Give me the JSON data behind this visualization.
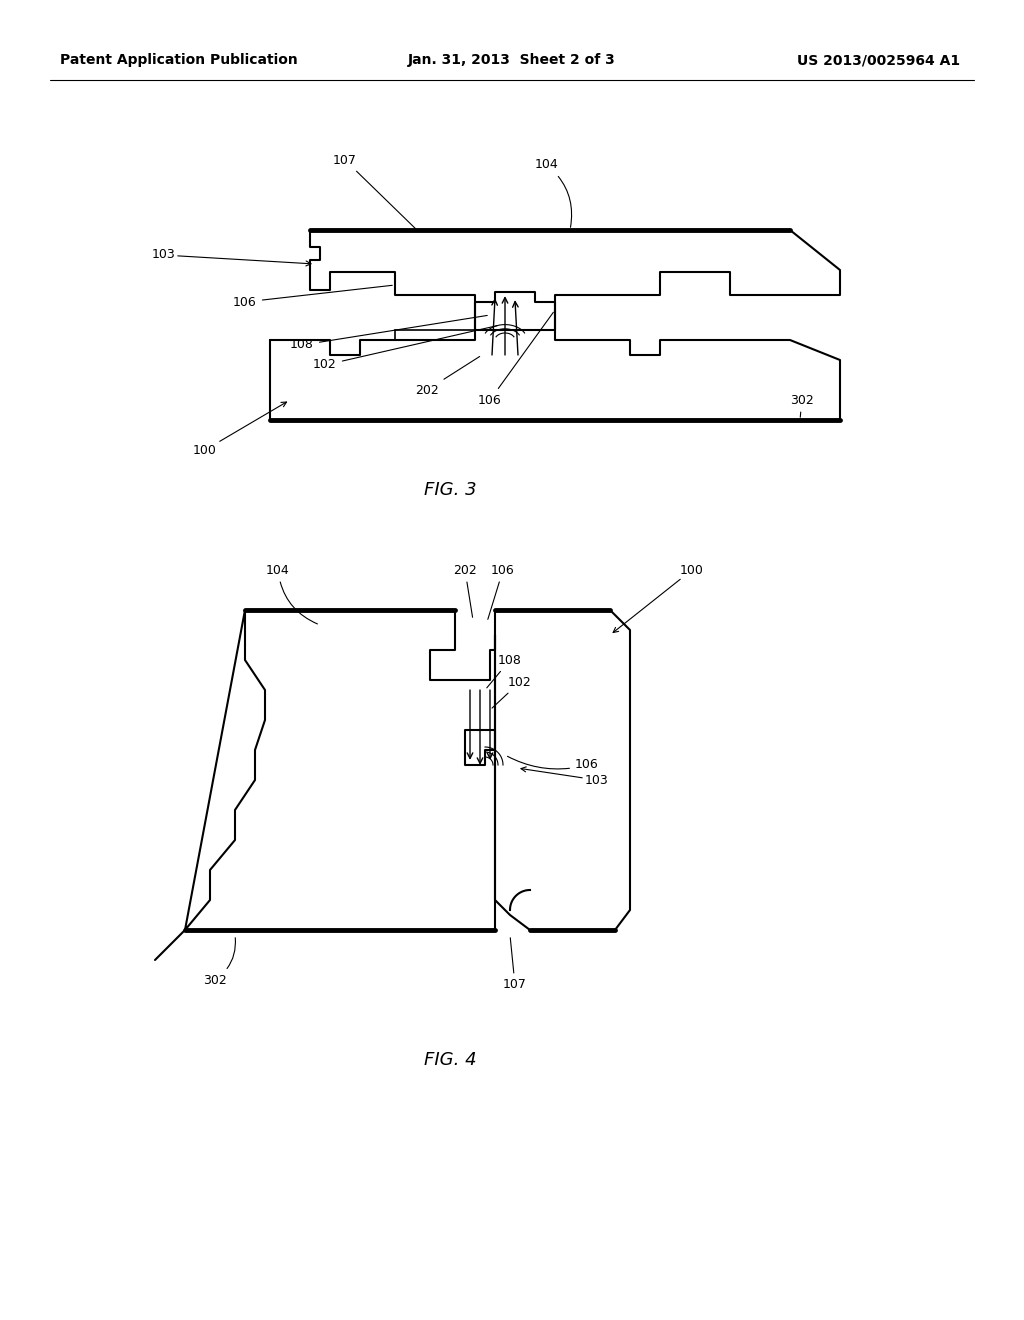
{
  "background_color": "#ffffff",
  "line_color": "#000000",
  "line_width": 1.5,
  "header_left": "Patent Application Publication",
  "header_center": "Jan. 31, 2013  Sheet 2 of 3",
  "header_right": "US 2013/0025964 A1",
  "fig3_label": "FIG. 3",
  "fig4_label": "FIG. 4",
  "header_fontsize": 10,
  "label_fontsize": 9,
  "fig_label_fontsize": 13
}
